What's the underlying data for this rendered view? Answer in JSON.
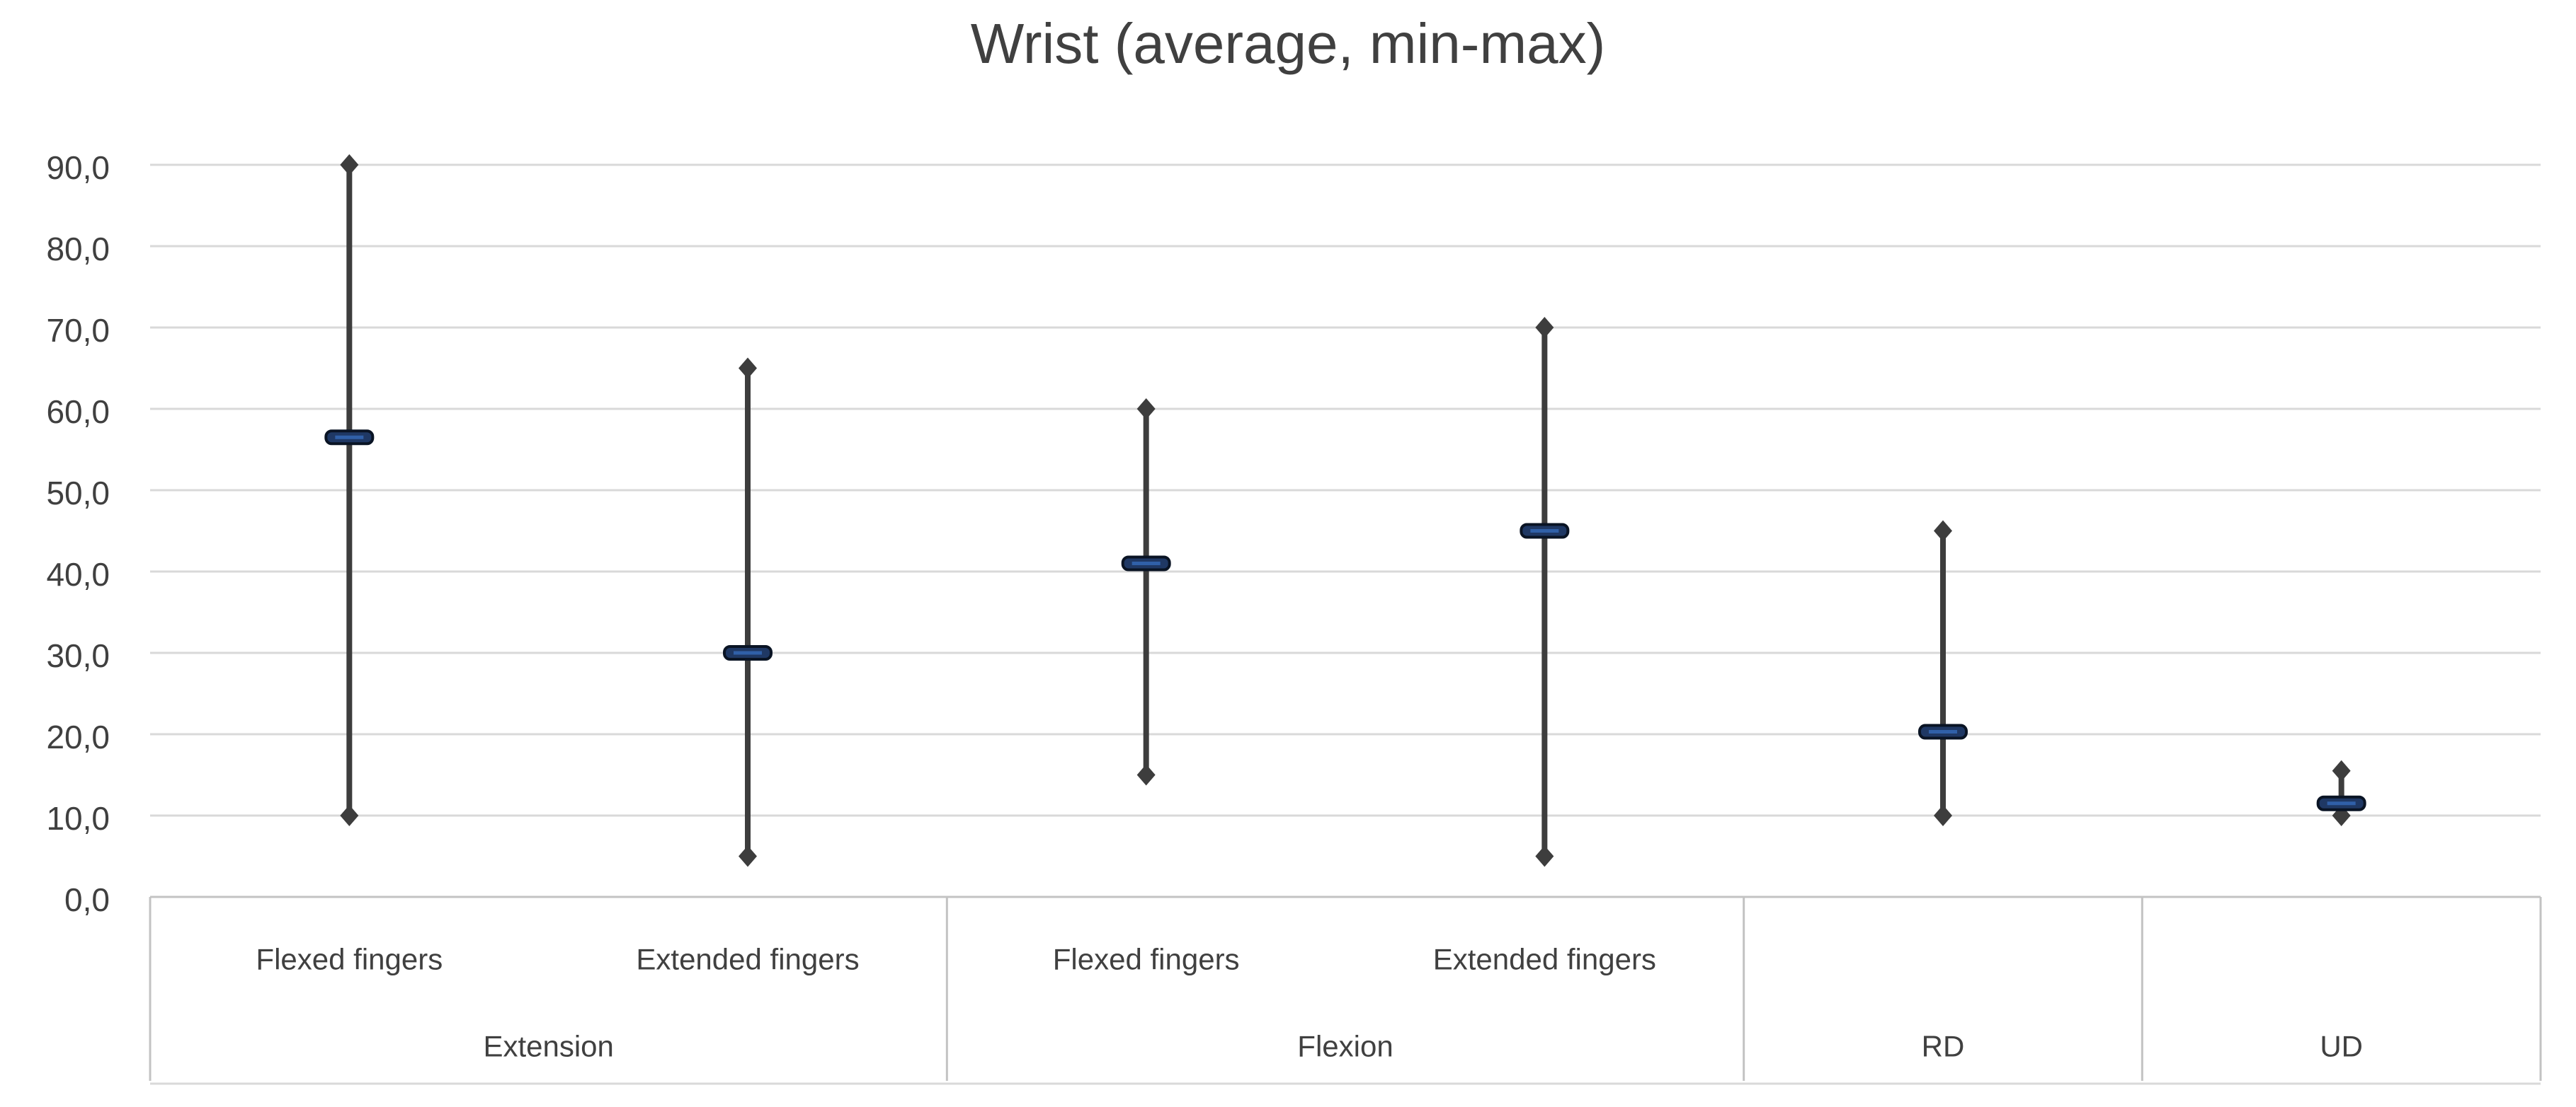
{
  "chart_data": {
    "type": "hilo-range (min-max whiskers with average marker)",
    "title": "Wrist (average, min-max)",
    "ylabel": "",
    "xlabel": "",
    "ylim": [
      0,
      90
    ],
    "ytick_step": 10,
    "ytick_labels_bottom_to_top": [
      "0,0",
      "10,0",
      "20,0",
      "30,0",
      "40,0",
      "50,0",
      "60,0",
      "70,0",
      "80,0",
      "90,0"
    ],
    "decimal_separator": ",",
    "grid": "horizontal",
    "legend": "none",
    "groups": [
      {
        "label": "Extension",
        "items": [
          {
            "label": "Flexed fingers",
            "avg": 56.5,
            "min": 10,
            "max": 90
          },
          {
            "label": "Extended fingers",
            "avg": 30,
            "min": 5,
            "max": 65
          }
        ]
      },
      {
        "label": "Flexion",
        "items": [
          {
            "label": "Flexed fingers",
            "avg": 41,
            "min": 15,
            "max": 60
          },
          {
            "label": "Extended fingers",
            "avg": 45,
            "min": 5,
            "max": 70
          }
        ]
      },
      {
        "label": "RD",
        "items": [
          {
            "label": "",
            "avg": 20.3,
            "min": 10,
            "max": 45
          }
        ]
      },
      {
        "label": "UD",
        "items": [
          {
            "label": "",
            "avg": 11.5,
            "min": 10,
            "max": 15.5
          }
        ]
      }
    ],
    "colors": {
      "whisker_line": "#3d3d3d",
      "minmax_marker": "#3d3d3d",
      "average_fill": "#1f3864",
      "average_stroke": "#0a1424",
      "average_stripe": "#3060a8",
      "gridline": "#d9d9d9",
      "axis_border": "#c3c3c3",
      "text": "#404040"
    }
  }
}
